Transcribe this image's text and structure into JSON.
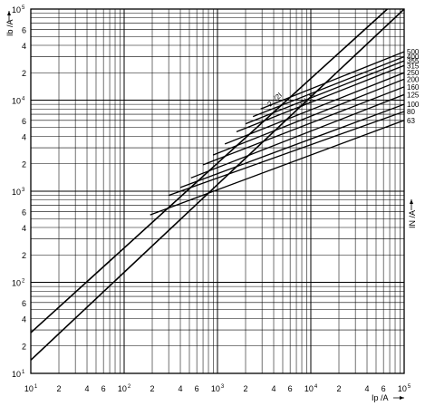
{
  "chart_data": {
    "type": "line",
    "x_scale": "log",
    "y_scale": "log",
    "xlim": [
      10,
      100000
    ],
    "ylim": [
      10,
      100000
    ],
    "grid": true,
    "xlabel": "Ip /A",
    "ylabel": "Ib /A",
    "rated_current_label": "IN /A",
    "x_ticks": [
      {
        "base": "10",
        "exp": "1",
        "value": 10
      },
      {
        "base": "2",
        "exp": "",
        "value": 20
      },
      {
        "base": "4",
        "exp": "",
        "value": 40
      },
      {
        "base": "6",
        "exp": "",
        "value": 60
      },
      {
        "base": "10",
        "exp": "2",
        "value": 100
      },
      {
        "base": "2",
        "exp": "",
        "value": 200
      },
      {
        "base": "4",
        "exp": "",
        "value": 400
      },
      {
        "base": "6",
        "exp": "",
        "value": 600
      },
      {
        "base": "10",
        "exp": "3",
        "value": 1000
      },
      {
        "base": "2",
        "exp": "",
        "value": 2000
      },
      {
        "base": "4",
        "exp": "",
        "value": 4000
      },
      {
        "base": "6",
        "exp": "",
        "value": 6000
      },
      {
        "base": "10",
        "exp": "4",
        "value": 10000
      },
      {
        "base": "2",
        "exp": "",
        "value": 20000
      },
      {
        "base": "4",
        "exp": "",
        "value": 40000
      },
      {
        "base": "6",
        "exp": "",
        "value": 60000
      },
      {
        "base": "10",
        "exp": "5",
        "value": 100000
      }
    ],
    "y_ticks": [
      {
        "base": "10",
        "exp": "1",
        "value": 10
      },
      {
        "base": "2",
        "exp": "",
        "value": 20
      },
      {
        "base": "4",
        "exp": "",
        "value": 40
      },
      {
        "base": "6",
        "exp": "",
        "value": 60
      },
      {
        "base": "10",
        "exp": "2",
        "value": 100
      },
      {
        "base": "2",
        "exp": "",
        "value": 200
      },
      {
        "base": "4",
        "exp": "",
        "value": 400
      },
      {
        "base": "6",
        "exp": "",
        "value": 600
      },
      {
        "base": "10",
        "exp": "3",
        "value": 1000
      },
      {
        "base": "2",
        "exp": "",
        "value": 2000
      },
      {
        "base": "4",
        "exp": "",
        "value": 4000
      },
      {
        "base": "6",
        "exp": "",
        "value": 6000
      },
      {
        "base": "10",
        "exp": "4",
        "value": 10000
      },
      {
        "base": "2",
        "exp": "",
        "value": 20000
      },
      {
        "base": "4",
        "exp": "",
        "value": 40000
      },
      {
        "base": "6",
        "exp": "",
        "value": 60000
      },
      {
        "base": "10",
        "exp": "5",
        "value": 100000
      }
    ],
    "reference_lines": [
      {
        "label": "2·√2I",
        "x": [
          10,
          66000
        ],
        "y": [
          28,
          100000
        ]
      },
      {
        "label": "√2I_K",
        "x": [
          10,
          100000
        ],
        "y": [
          14,
          100000
        ]
      }
    ],
    "series": [
      {
        "name": "500",
        "x": [
          2900,
          100000
        ],
        "y": [
          8000,
          34000
        ]
      },
      {
        "name": "400",
        "x": [
          2400,
          100000
        ],
        "y": [
          6600,
          30000
        ]
      },
      {
        "name": "355",
        "x": [
          2000,
          100000
        ],
        "y": [
          5500,
          27000
        ]
      },
      {
        "name": "315",
        "x": [
          1600,
          100000
        ],
        "y": [
          4500,
          24000
        ]
      },
      {
        "name": "250",
        "x": [
          1200,
          100000
        ],
        "y": [
          3300,
          20000
        ]
      },
      {
        "name": "200",
        "x": [
          900,
          100000
        ],
        "y": [
          2500,
          17000
        ]
      },
      {
        "name": "160",
        "x": [
          700,
          100000
        ],
        "y": [
          1950,
          14000
        ]
      },
      {
        "name": "125",
        "x": [
          520,
          100000
        ],
        "y": [
          1400,
          11500
        ]
      },
      {
        "name": "100",
        "x": [
          400,
          100000
        ],
        "y": [
          1100,
          9000
        ]
      },
      {
        "name": "80",
        "x": [
          300,
          100000
        ],
        "y": [
          900,
          7500
        ]
      },
      {
        "name": "63",
        "x": [
          190,
          100000
        ],
        "y": [
          550,
          6000
        ]
      }
    ],
    "colors": {
      "line": "#000000",
      "grid": "#000000",
      "background": "#ffffff"
    }
  }
}
